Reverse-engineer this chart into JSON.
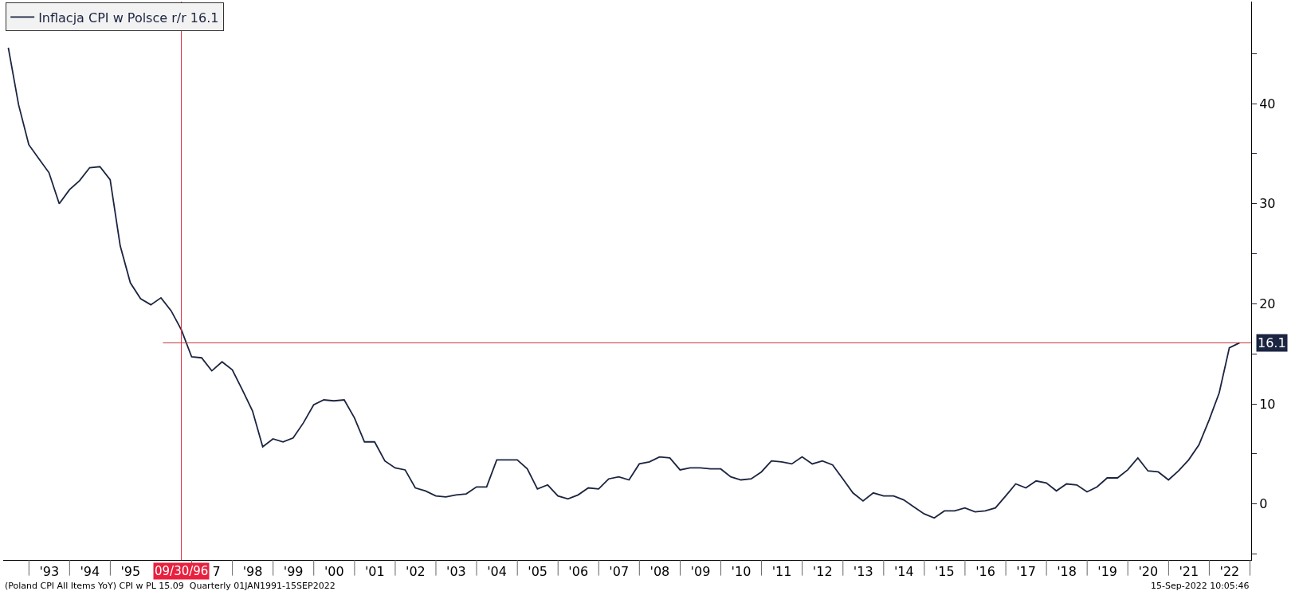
{
  "chart_data": {
    "type": "line",
    "x": [
      "1992-06-30",
      "1992-09-30",
      "1992-12-31",
      "1993-03-31",
      "1993-06-30",
      "1993-09-30",
      "1993-12-31",
      "1994-03-31",
      "1994-06-30",
      "1994-09-30",
      "1994-12-31",
      "1995-03-31",
      "1995-06-30",
      "1995-09-30",
      "1995-12-31",
      "1996-03-31",
      "1996-06-30",
      "1996-09-30",
      "1996-12-31",
      "1997-03-31",
      "1997-06-30",
      "1997-09-30",
      "1997-12-31",
      "1998-03-31",
      "1998-06-30",
      "1998-09-30",
      "1998-12-31",
      "1999-03-31",
      "1999-06-30",
      "1999-09-30",
      "1999-12-31",
      "2000-03-31",
      "2000-06-30",
      "2000-09-30",
      "2000-12-31",
      "2001-03-31",
      "2001-06-30",
      "2001-09-30",
      "2001-12-31",
      "2002-03-31",
      "2002-06-30",
      "2002-09-30",
      "2002-12-31",
      "2003-03-31",
      "2003-06-30",
      "2003-09-30",
      "2003-12-31",
      "2004-03-31",
      "2004-06-30",
      "2004-09-30",
      "2004-12-31",
      "2005-03-31",
      "2005-06-30",
      "2005-09-30",
      "2005-12-31",
      "2006-03-31",
      "2006-06-30",
      "2006-09-30",
      "2006-12-31",
      "2007-03-31",
      "2007-06-30",
      "2007-09-30",
      "2007-12-31",
      "2008-03-31",
      "2008-06-30",
      "2008-09-30",
      "2008-12-31",
      "2009-03-31",
      "2009-06-30",
      "2009-09-30",
      "2009-12-31",
      "2010-03-31",
      "2010-06-30",
      "2010-09-30",
      "2010-12-31",
      "2011-03-31",
      "2011-06-30",
      "2011-09-30",
      "2011-12-31",
      "2012-03-31",
      "2012-06-30",
      "2012-09-30",
      "2012-12-31",
      "2013-03-31",
      "2013-06-30",
      "2013-09-30",
      "2013-12-31",
      "2014-03-31",
      "2014-06-30",
      "2014-09-30",
      "2014-12-31",
      "2015-03-31",
      "2015-06-30",
      "2015-09-30",
      "2015-12-31",
      "2016-03-31",
      "2016-06-30",
      "2016-09-30",
      "2016-12-31",
      "2017-03-31",
      "2017-06-30",
      "2017-09-30",
      "2017-12-31",
      "2018-03-31",
      "2018-06-30",
      "2018-09-30",
      "2018-12-31",
      "2019-03-31",
      "2019-06-30",
      "2019-09-30",
      "2019-12-31",
      "2020-03-31",
      "2020-06-30",
      "2020-09-30",
      "2020-12-31",
      "2021-03-31",
      "2021-06-30",
      "2021-09-30",
      "2021-12-31",
      "2022-03-31",
      "2022-06-30",
      "2022-09-30"
    ],
    "series": [
      {
        "name": "Inflacja CPI w Polsce r/r 16.1",
        "color": "#1b2440",
        "values": [
          45.6,
          39.9,
          35.9,
          34.5,
          33.1,
          30.0,
          31.4,
          32.3,
          33.6,
          33.7,
          32.4,
          25.8,
          22.1,
          20.5,
          19.9,
          20.6,
          19.3,
          17.4,
          14.7,
          14.6,
          13.3,
          14.2,
          13.4,
          11.4,
          9.3,
          5.7,
          6.5,
          6.2,
          6.6,
          8.1,
          9.9,
          10.4,
          10.3,
          10.4,
          8.6,
          6.2,
          6.2,
          4.3,
          3.6,
          3.4,
          1.6,
          1.3,
          0.8,
          0.7,
          0.9,
          1.0,
          1.7,
          1.7,
          4.4,
          4.4,
          4.4,
          3.5,
          1.5,
          1.9,
          0.8,
          0.5,
          0.9,
          1.6,
          1.5,
          2.5,
          2.7,
          2.4,
          4.0,
          4.2,
          4.7,
          4.6,
          3.4,
          3.6,
          3.6,
          3.5,
          3.5,
          2.7,
          2.4,
          2.5,
          3.2,
          4.3,
          4.2,
          4.0,
          4.7,
          4.0,
          4.3,
          3.9,
          2.5,
          1.1,
          0.3,
          1.1,
          0.8,
          0.8,
          0.4,
          -0.3,
          -1.0,
          -1.4,
          -0.7,
          -0.7,
          -0.4,
          -0.8,
          -0.7,
          -0.4,
          0.8,
          2.0,
          1.6,
          2.3,
          2.1,
          1.3,
          2.0,
          1.9,
          1.2,
          1.7,
          2.6,
          2.6,
          3.4,
          4.6,
          3.3,
          3.2,
          2.4,
          3.3,
          4.4,
          5.9,
          8.4,
          11.1,
          15.6,
          16.1
        ]
      }
    ],
    "xlim": [
      "1992-05-15",
      "2023-01-12"
    ],
    "xticks": [
      {
        "value": "1993-07-02",
        "label": "'93"
      },
      {
        "value": "1994-07-02",
        "label": "'94"
      },
      {
        "value": "1995-07-02",
        "label": "'95"
      },
      {
        "value": "1997-08-10",
        "label": "7"
      },
      {
        "value": "1998-07-02",
        "label": "'98"
      },
      {
        "value": "1999-07-02",
        "label": "'99"
      },
      {
        "value": "2000-07-02",
        "label": "'00"
      },
      {
        "value": "2001-07-02",
        "label": "'01"
      },
      {
        "value": "2002-07-02",
        "label": "'02"
      },
      {
        "value": "2003-07-02",
        "label": "'03"
      },
      {
        "value": "2004-07-02",
        "label": "'04"
      },
      {
        "value": "2005-07-02",
        "label": "'05"
      },
      {
        "value": "2006-07-02",
        "label": "'06"
      },
      {
        "value": "2007-07-02",
        "label": "'07"
      },
      {
        "value": "2008-07-02",
        "label": "'08"
      },
      {
        "value": "2009-07-02",
        "label": "'09"
      },
      {
        "value": "2010-07-02",
        "label": "'10"
      },
      {
        "value": "2011-07-02",
        "label": "'11"
      },
      {
        "value": "2012-07-02",
        "label": "'12"
      },
      {
        "value": "2013-07-02",
        "label": "'13"
      },
      {
        "value": "2014-07-02",
        "label": "'14"
      },
      {
        "value": "2015-07-02",
        "label": "'15"
      },
      {
        "value": "2016-07-02",
        "label": "'16"
      },
      {
        "value": "2017-07-02",
        "label": "'17"
      },
      {
        "value": "2018-07-02",
        "label": "'18"
      },
      {
        "value": "2019-07-02",
        "label": "'19"
      },
      {
        "value": "2020-07-02",
        "label": "'20"
      },
      {
        "value": "2021-07-02",
        "label": "'21"
      },
      {
        "value": "2022-07-02",
        "label": "'22"
      }
    ],
    "ylim": [
      -5.6,
      50.2
    ],
    "yticks": [
      {
        "value": -5,
        "label": null
      },
      0,
      {
        "value": 5,
        "label": null
      },
      10,
      {
        "value": 15,
        "label": null
      },
      20,
      {
        "value": 25,
        "label": null
      },
      30,
      {
        "value": 35,
        "label": null
      },
      40,
      {
        "value": 45,
        "label": null
      }
    ],
    "ref_lines": [
      {
        "axis": "x",
        "value": "1996-09-30",
        "label": "09/30/96",
        "color": "#e8213f"
      },
      {
        "axis": "y",
        "value": 16.1,
        "label": "16.1",
        "color": "#c0303a"
      }
    ],
    "annotations": [
      "(Poland CPI All Items YoY) CPI w PL 15.09  Quarterly 01JAN1991-15SEP2022",
      "15-Sep-2022 10:05:46"
    ],
    "legend": "top left",
    "marker": "none",
    "line_style": "solid"
  }
}
